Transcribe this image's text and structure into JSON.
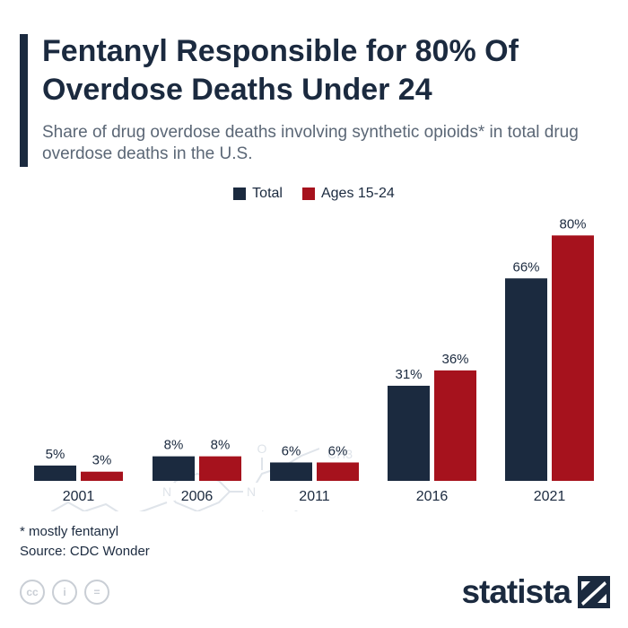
{
  "header": {
    "title": "Fentanyl Responsible for 80% Of Overdose Deaths Under 24",
    "subtitle": "Share of drug overdose deaths involving synthetic opioids* in total drug overdose deaths in the U.S."
  },
  "colors": {
    "total": "#1b2a3f",
    "ages": "#a6121d",
    "accent_bar": "#1b2a3f",
    "molecule": "#dfe4ea"
  },
  "chart_data": {
    "type": "bar",
    "categories": [
      "2001",
      "2006",
      "2011",
      "2016",
      "2021"
    ],
    "series": [
      {
        "name": "Total",
        "values": [
          5,
          8,
          6,
          31,
          66
        ],
        "labels": [
          "5%",
          "8%",
          "6%",
          "31%",
          "66%"
        ]
      },
      {
        "name": "Ages 15-24",
        "values": [
          3,
          8,
          6,
          36,
          80
        ],
        "labels": [
          "3%",
          "8%",
          "6%",
          "36%",
          "80%"
        ]
      }
    ],
    "ylim": [
      0,
      100
    ],
    "grid": false,
    "legend": "top-center",
    "molecule_labels": [
      "N",
      "N",
      "O",
      "CH3"
    ]
  },
  "footer": {
    "footnote": "* mostly fentanyl",
    "source": "Source: CDC Wonder",
    "license_icons": [
      "creative-commons-icon",
      "attribution-icon",
      "no-derivatives-icon"
    ],
    "license_glyphs": [
      "cc",
      "i",
      "="
    ],
    "logo": "statista"
  }
}
